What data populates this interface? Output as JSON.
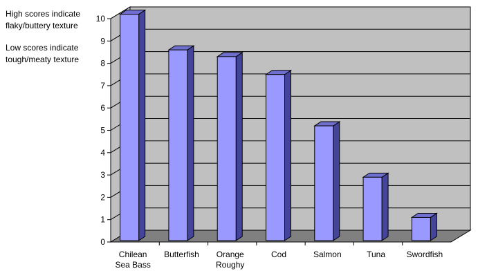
{
  "annotation": {
    "high_line1": "High scores indicate",
    "high_line2": "flaky/buttery texture",
    "low_line1": "Low scores indicate",
    "low_line2": "tough/meaty texture"
  },
  "chart_data": {
    "type": "bar",
    "title": "",
    "xlabel": "",
    "ylabel": "",
    "ylim": [
      0,
      10
    ],
    "yticks": [
      0,
      1,
      2,
      3,
      4,
      5,
      6,
      7,
      8,
      9,
      10
    ],
    "categories": [
      [
        "Chilean",
        "Sea Bass"
      ],
      [
        "Butterfish"
      ],
      [
        "Orange",
        "Roughy"
      ],
      [
        "Cod"
      ],
      [
        "Salmon"
      ],
      [
        "Tuna"
      ],
      [
        "Swordfish"
      ]
    ],
    "values": [
      10.2,
      8.6,
      8.3,
      7.5,
      5.2,
      2.9,
      1.1
    ],
    "grid": true,
    "legend": "none",
    "colors": {
      "bar_front": "#9999ff",
      "bar_side": "#44449a",
      "bar_top": "#6f6fcf",
      "back_wall": "#c0c0c0",
      "floor": "#808080",
      "gridline": "#000000"
    }
  }
}
